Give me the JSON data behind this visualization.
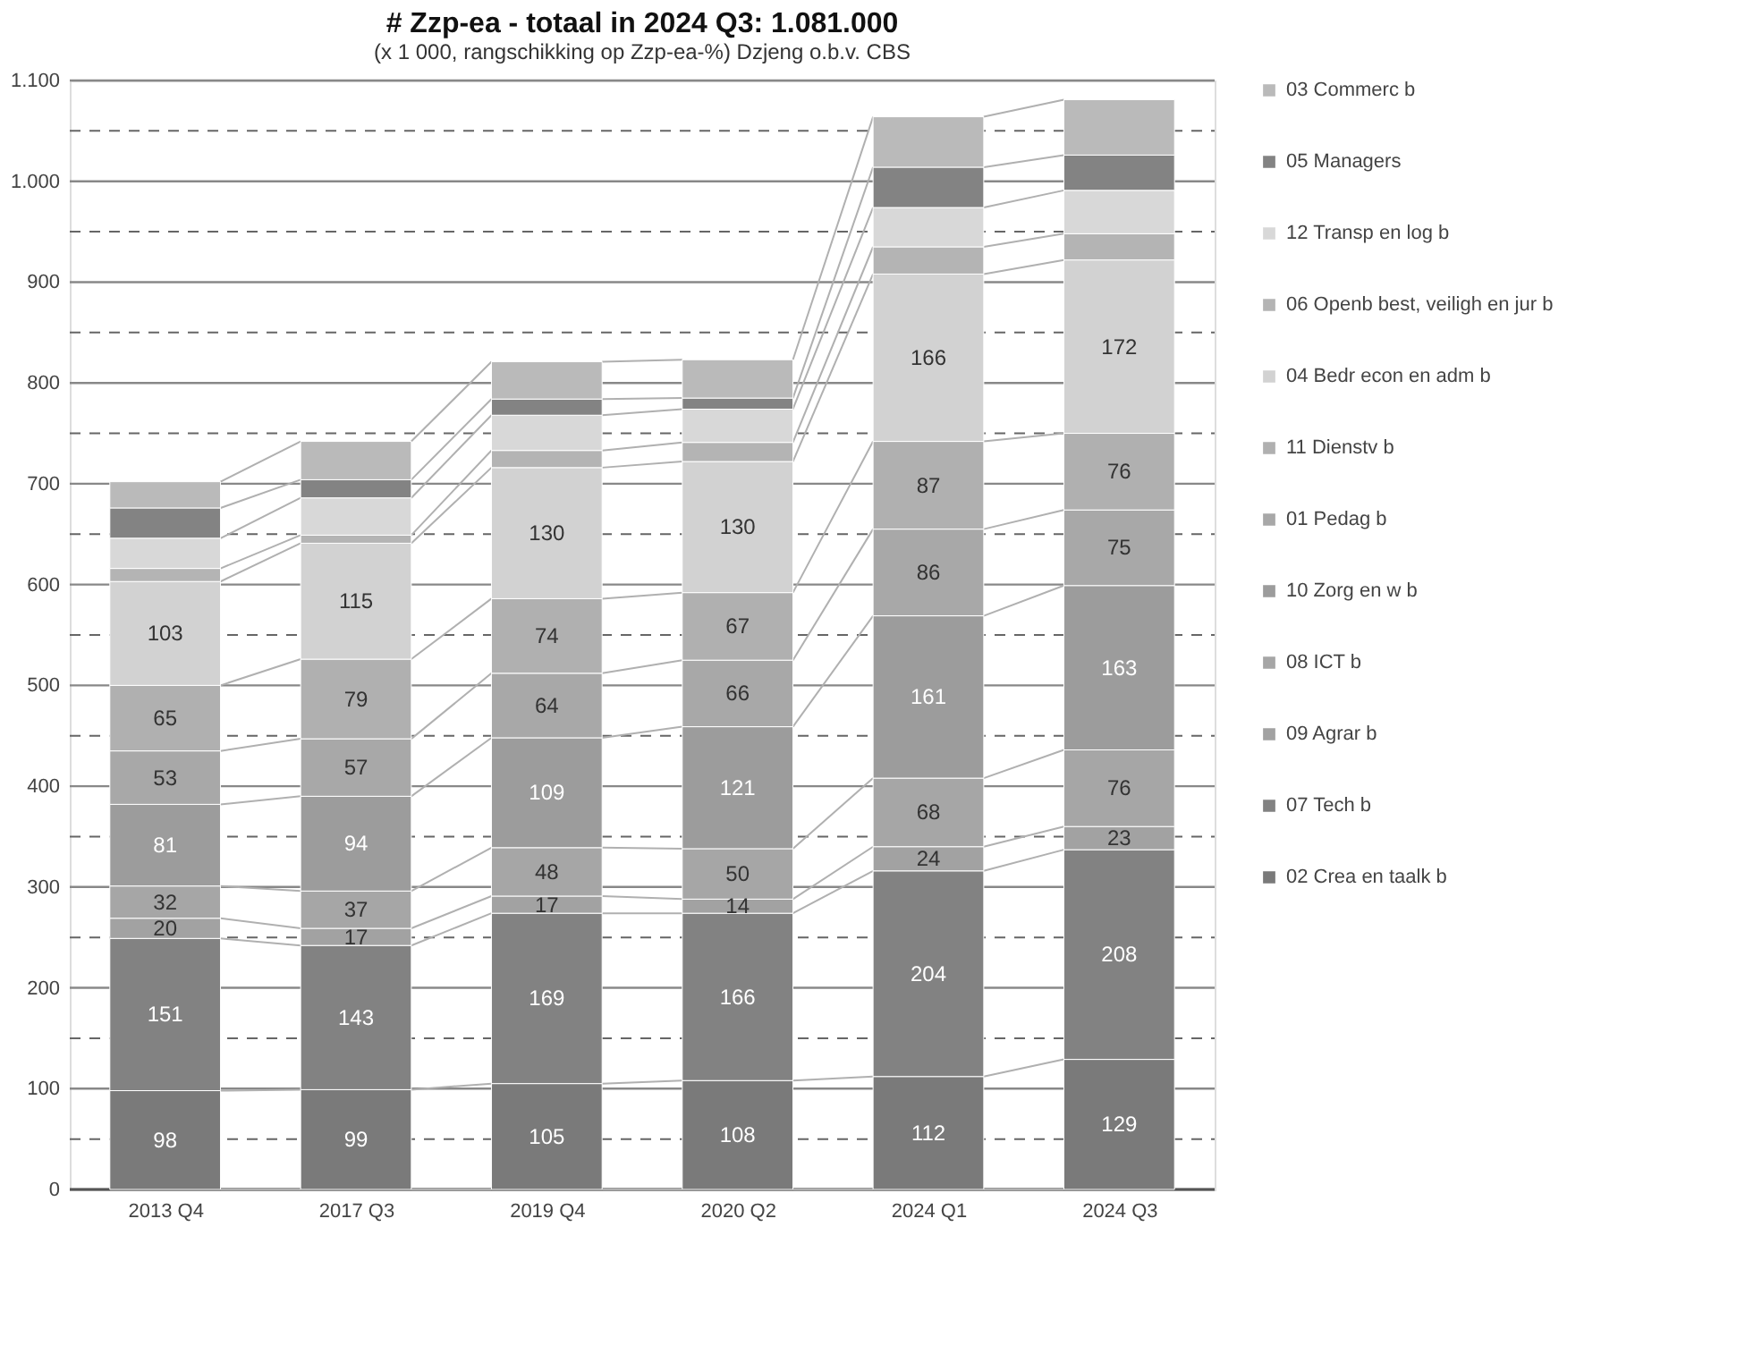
{
  "chart_data": {
    "type": "bar",
    "stacked": true,
    "title": "# Zzp-ea - totaal in 2024 Q3: 1.081.000",
    "subtitle": "(x 1 000, rangschikking op Zzp-ea-%) Dzjeng o.b.v. CBS",
    "categories": [
      "2013 Q4",
      "2017 Q3",
      "2019 Q4",
      "2020 Q2",
      "2024 Q1",
      "2024 Q3"
    ],
    "series": [
      {
        "name": "02 Crea en taalk b",
        "color": "#7a7a7a",
        "values": [
          98,
          99,
          105,
          108,
          112,
          129
        ],
        "value_labels": [
          "98",
          "99",
          "105",
          "108",
          "112",
          "129"
        ]
      },
      {
        "name": "07 Tech b",
        "color": "#828282",
        "values": [
          151,
          143,
          169,
          166,
          204,
          208
        ],
        "value_labels": [
          "151",
          "143",
          "169",
          "166",
          "204",
          "208"
        ]
      },
      {
        "name": "09 Agrar b",
        "color": "#a2a2a2",
        "values": [
          20,
          17,
          17,
          14,
          24,
          23
        ],
        "value_labels": [
          "20",
          "17",
          "17",
          "14",
          "24",
          "23"
        ]
      },
      {
        "name": "08 ICT b",
        "color": "#a6a6a6",
        "values": [
          32,
          37,
          48,
          50,
          68,
          76
        ],
        "value_labels": [
          "32",
          "37",
          "48",
          "50",
          "68",
          "76"
        ]
      },
      {
        "name": "10 Zorg en w b",
        "color": "#9c9c9c",
        "values": [
          81,
          94,
          109,
          121,
          161,
          163
        ],
        "value_labels": [
          "81",
          "94",
          "109",
          "121",
          "161",
          "163"
        ]
      },
      {
        "name": "01 Pedag b",
        "color": "#a8a8a8",
        "values": [
          53,
          57,
          64,
          66,
          86,
          75
        ],
        "value_labels": [
          "53",
          "57",
          "64",
          "66",
          "86",
          "75"
        ]
      },
      {
        "name": "11 Dienstv b",
        "color": "#b0b0b0",
        "values": [
          65,
          79,
          74,
          67,
          87,
          76
        ],
        "value_labels": [
          "65",
          "79",
          "74",
          "67",
          "87",
          "76"
        ]
      },
      {
        "name": "04 Bedr econ en adm b",
        "color": "#d2d2d2",
        "values": [
          103,
          115,
          130,
          130,
          166,
          172
        ],
        "value_labels": [
          "103",
          "115",
          "130",
          "130",
          "166",
          "172"
        ]
      },
      {
        "name": "06 Openb best, veiligh en jur b",
        "color": "#b4b4b4",
        "values": [
          13,
          8,
          17,
          19,
          27,
          26
        ]
      },
      {
        "name": "12 Transp en log b",
        "color": "#d8d8d8",
        "values": [
          30,
          37,
          35,
          33,
          39,
          43
        ]
      },
      {
        "name": "05 Managers",
        "color": "#838383",
        "values": [
          30,
          18,
          16,
          11,
          40,
          35
        ]
      },
      {
        "name": "03 Commerc b",
        "color": "#bababa",
        "values": [
          26,
          38,
          37,
          38,
          50,
          55
        ]
      }
    ],
    "ylim": [
      0,
      1100
    ],
    "yticks": [
      0,
      {
        "value": 50,
        "label": null
      },
      100,
      {
        "value": 150,
        "label": null
      },
      200,
      {
        "value": 250,
        "label": null
      },
      300,
      {
        "value": 350,
        "label": null
      },
      400,
      {
        "value": 450,
        "label": null
      },
      500,
      {
        "value": 550,
        "label": null
      },
      600,
      {
        "value": 650,
        "label": null
      },
      700,
      {
        "value": 750,
        "label": null
      },
      800,
      {
        "value": 850,
        "label": null
      },
      900,
      {
        "value": 950,
        "label": null
      },
      {
        "value": 1000,
        "label": "1.000"
      },
      {
        "value": 1050,
        "label": null
      },
      {
        "value": 1100,
        "label": "1.100"
      }
    ],
    "grid": "y",
    "legend": "right"
  }
}
